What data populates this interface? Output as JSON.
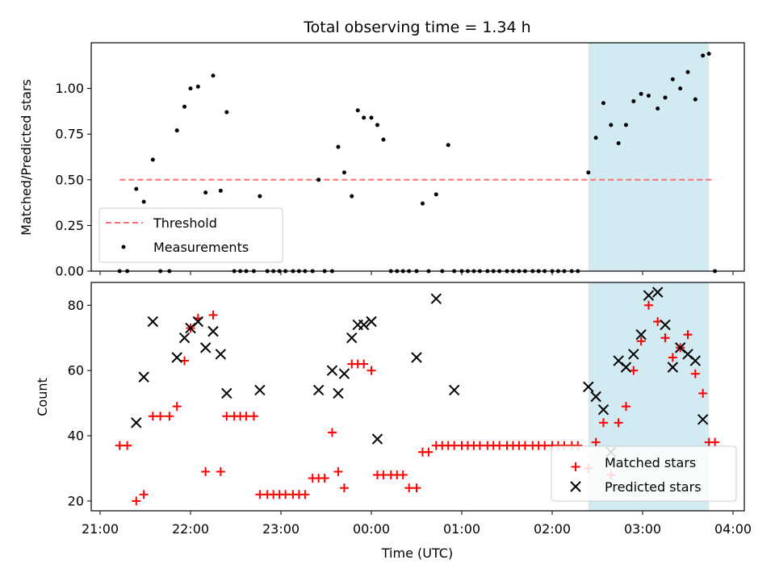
{
  "chart_data": [
    {
      "type": "scatter",
      "title": "Total observing time = 1.34 h",
      "xlabel": "",
      "ylabel": "Matched/Predicted stars",
      "ylim": [
        0,
        1.25
      ],
      "yticks": [
        "0.00",
        "0.25",
        "0.50",
        "0.75",
        "1.00"
      ],
      "highlight_band": {
        "x": [
          "02:24",
          "03:44"
        ],
        "color": "#add8e6"
      },
      "series": [
        {
          "name": "Threshold",
          "style": "dashed-line",
          "color": "#ff6f6f",
          "x": [
            "21:13",
            "03:48"
          ],
          "y": [
            0.5,
            0.5
          ]
        },
        {
          "name": "Measurements",
          "style": "dot",
          "color": "#000000",
          "points": [
            [
              "21:13",
              0.0
            ],
            [
              "21:18",
              0.0
            ],
            [
              "21:24",
              0.45
            ],
            [
              "21:29",
              0.38
            ],
            [
              "21:35",
              0.61
            ],
            [
              "21:40",
              0.0
            ],
            [
              "21:46",
              0.0
            ],
            [
              "21:51",
              0.77
            ],
            [
              "21:56",
              0.9
            ],
            [
              "22:00",
              1.0
            ],
            [
              "22:05",
              1.01
            ],
            [
              "22:10",
              0.43
            ],
            [
              "22:15",
              1.07
            ],
            [
              "22:20",
              0.44
            ],
            [
              "22:24",
              0.87
            ],
            [
              "22:29",
              0.0
            ],
            [
              "22:33",
              0.0
            ],
            [
              "22:37",
              0.0
            ],
            [
              "22:42",
              0.0
            ],
            [
              "22:46",
              0.41
            ],
            [
              "22:51",
              0.0
            ],
            [
              "22:55",
              0.0
            ],
            [
              "22:59",
              0.0
            ],
            [
              "23:03",
              0.0
            ],
            [
              "23:08",
              0.0
            ],
            [
              "23:12",
              0.0
            ],
            [
              "23:16",
              0.0
            ],
            [
              "23:21",
              0.0
            ],
            [
              "23:25",
              0.5
            ],
            [
              "23:29",
              0.0
            ],
            [
              "23:34",
              0.0
            ],
            [
              "23:38",
              0.68
            ],
            [
              "23:42",
              0.54
            ],
            [
              "23:47",
              0.41
            ],
            [
              "23:51",
              0.88
            ],
            [
              "23:55",
              0.84
            ],
            [
              "00:00",
              0.84
            ],
            [
              "00:04",
              0.8
            ],
            [
              "00:08",
              0.72
            ],
            [
              "00:13",
              0.0
            ],
            [
              "00:17",
              0.0
            ],
            [
              "00:21",
              0.0
            ],
            [
              "00:25",
              0.0
            ],
            [
              "00:30",
              0.0
            ],
            [
              "00:34",
              0.37
            ],
            [
              "00:38",
              0.0
            ],
            [
              "00:43",
              0.42
            ],
            [
              "00:47",
              0.0
            ],
            [
              "00:51",
              0.69
            ],
            [
              "00:55",
              0.0
            ],
            [
              "01:00",
              0.0
            ],
            [
              "01:04",
              0.0
            ],
            [
              "01:08",
              0.0
            ],
            [
              "01:12",
              0.0
            ],
            [
              "01:17",
              0.0
            ],
            [
              "01:21",
              0.0
            ],
            [
              "01:25",
              0.0
            ],
            [
              "01:30",
              0.0
            ],
            [
              "01:34",
              0.0
            ],
            [
              "01:38",
              0.0
            ],
            [
              "01:42",
              0.0
            ],
            [
              "01:47",
              0.0
            ],
            [
              "01:51",
              0.0
            ],
            [
              "01:55",
              0.0
            ],
            [
              "02:00",
              0.0
            ],
            [
              "02:04",
              0.0
            ],
            [
              "02:08",
              0.0
            ],
            [
              "02:13",
              0.0
            ],
            [
              "02:17",
              0.0
            ],
            [
              "02:24",
              0.54
            ],
            [
              "02:29",
              0.73
            ],
            [
              "02:34",
              0.92
            ],
            [
              "02:39",
              0.8
            ],
            [
              "02:44",
              0.7
            ],
            [
              "02:49",
              0.8
            ],
            [
              "02:54",
              0.93
            ],
            [
              "02:59",
              0.97
            ],
            [
              "03:04",
              0.96
            ],
            [
              "03:10",
              0.89
            ],
            [
              "03:15",
              0.95
            ],
            [
              "03:20",
              1.05
            ],
            [
              "03:25",
              1.0
            ],
            [
              "03:30",
              1.09
            ],
            [
              "03:35",
              0.94
            ],
            [
              "03:40",
              1.18
            ],
            [
              "03:44",
              1.19
            ],
            [
              "03:48",
              0.0
            ]
          ]
        }
      ],
      "legend": {
        "location": "lower-left",
        "entries": [
          "Threshold",
          "Measurements"
        ]
      }
    },
    {
      "type": "scatter",
      "xlabel": "Time (UTC)",
      "ylabel": "Count",
      "ylim": [
        17,
        87
      ],
      "yticks": [
        "20",
        "40",
        "60",
        "80"
      ],
      "xticks": [
        "21:00",
        "22:00",
        "23:00",
        "00:00",
        "01:00",
        "02:00",
        "03:00",
        "04:00"
      ],
      "highlight_band": {
        "x": [
          "02:24",
          "03:44"
        ],
        "color": "#add8e6"
      },
      "series": [
        {
          "name": "Matched stars",
          "marker": "+",
          "color": "#ff0000",
          "points": [
            [
              "21:13",
              37
            ],
            [
              "21:18",
              37
            ],
            [
              "21:24",
              20
            ],
            [
              "21:29",
              22
            ],
            [
              "21:35",
              46
            ],
            [
              "21:40",
              46
            ],
            [
              "21:46",
              46
            ],
            [
              "21:51",
              49
            ],
            [
              "21:56",
              63
            ],
            [
              "22:00",
              73
            ],
            [
              "22:05",
              76
            ],
            [
              "22:10",
              29
            ],
            [
              "22:15",
              77
            ],
            [
              "22:20",
              29
            ],
            [
              "22:24",
              46
            ],
            [
              "22:29",
              46
            ],
            [
              "22:33",
              46
            ],
            [
              "22:37",
              46
            ],
            [
              "22:42",
              46
            ],
            [
              "22:46",
              22
            ],
            [
              "22:51",
              22
            ],
            [
              "22:55",
              22
            ],
            [
              "22:59",
              22
            ],
            [
              "23:03",
              22
            ],
            [
              "23:08",
              22
            ],
            [
              "23:12",
              22
            ],
            [
              "23:16",
              22
            ],
            [
              "23:21",
              27
            ],
            [
              "23:25",
              27
            ],
            [
              "23:29",
              27
            ],
            [
              "23:34",
              41
            ],
            [
              "23:38",
              29
            ],
            [
              "23:42",
              24
            ],
            [
              "23:47",
              62
            ],
            [
              "23:51",
              62
            ],
            [
              "23:55",
              62
            ],
            [
              "00:00",
              60
            ],
            [
              "00:04",
              28
            ],
            [
              "00:08",
              28
            ],
            [
              "00:13",
              28
            ],
            [
              "00:17",
              28
            ],
            [
              "00:21",
              28
            ],
            [
              "00:25",
              24
            ],
            [
              "00:30",
              24
            ],
            [
              "00:34",
              35
            ],
            [
              "00:38",
              35
            ],
            [
              "00:43",
              37
            ],
            [
              "00:47",
              37
            ],
            [
              "00:51",
              37
            ],
            [
              "00:55",
              37
            ],
            [
              "01:00",
              37
            ],
            [
              "01:04",
              37
            ],
            [
              "01:08",
              37
            ],
            [
              "01:12",
              37
            ],
            [
              "01:17",
              37
            ],
            [
              "01:21",
              37
            ],
            [
              "01:25",
              37
            ],
            [
              "01:30",
              37
            ],
            [
              "01:34",
              37
            ],
            [
              "01:38",
              37
            ],
            [
              "01:42",
              37
            ],
            [
              "01:47",
              37
            ],
            [
              "01:51",
              37
            ],
            [
              "01:55",
              37
            ],
            [
              "02:00",
              37
            ],
            [
              "02:04",
              37
            ],
            [
              "02:08",
              37
            ],
            [
              "02:13",
              37
            ],
            [
              "02:17",
              37
            ],
            [
              "02:24",
              30
            ],
            [
              "02:29",
              38
            ],
            [
              "02:34",
              44
            ],
            [
              "02:39",
              28
            ],
            [
              "02:44",
              44
            ],
            [
              "02:49",
              49
            ],
            [
              "02:54",
              60
            ],
            [
              "02:59",
              69
            ],
            [
              "03:04",
              80
            ],
            [
              "03:10",
              75
            ],
            [
              "03:15",
              70
            ],
            [
              "03:20",
              64
            ],
            [
              "03:25",
              67
            ],
            [
              "03:30",
              71
            ],
            [
              "03:35",
              59
            ],
            [
              "03:40",
              53
            ],
            [
              "03:44",
              38
            ],
            [
              "03:48",
              38
            ]
          ]
        },
        {
          "name": "Predicted stars",
          "marker": "x",
          "color": "#000000",
          "points": [
            [
              "21:24",
              44
            ],
            [
              "21:29",
              58
            ],
            [
              "21:35",
              75
            ],
            [
              "21:51",
              64
            ],
            [
              "21:56",
              70
            ],
            [
              "22:00",
              73
            ],
            [
              "22:05",
              75
            ],
            [
              "22:10",
              67
            ],
            [
              "22:15",
              72
            ],
            [
              "22:20",
              65
            ],
            [
              "22:24",
              53
            ],
            [
              "22:46",
              54
            ],
            [
              "23:25",
              54
            ],
            [
              "23:34",
              60
            ],
            [
              "23:38",
              53
            ],
            [
              "23:42",
              59
            ],
            [
              "23:47",
              70
            ],
            [
              "23:51",
              74
            ],
            [
              "23:55",
              74
            ],
            [
              "00:00",
              75
            ],
            [
              "00:04",
              39
            ],
            [
              "00:30",
              64
            ],
            [
              "00:43",
              82
            ],
            [
              "00:55",
              54
            ],
            [
              "02:24",
              55
            ],
            [
              "02:29",
              52
            ],
            [
              "02:34",
              48
            ],
            [
              "02:39",
              35
            ],
            [
              "02:44",
              63
            ],
            [
              "02:49",
              61
            ],
            [
              "02:54",
              65
            ],
            [
              "02:59",
              71
            ],
            [
              "03:04",
              83
            ],
            [
              "03:10",
              84
            ],
            [
              "03:15",
              74
            ],
            [
              "03:20",
              61
            ],
            [
              "03:25",
              67
            ],
            [
              "03:30",
              65
            ],
            [
              "03:35",
              63
            ],
            [
              "03:40",
              45
            ]
          ]
        }
      ],
      "legend": {
        "location": "lower-right",
        "entries": [
          "Matched stars",
          "Predicted stars"
        ]
      }
    }
  ]
}
